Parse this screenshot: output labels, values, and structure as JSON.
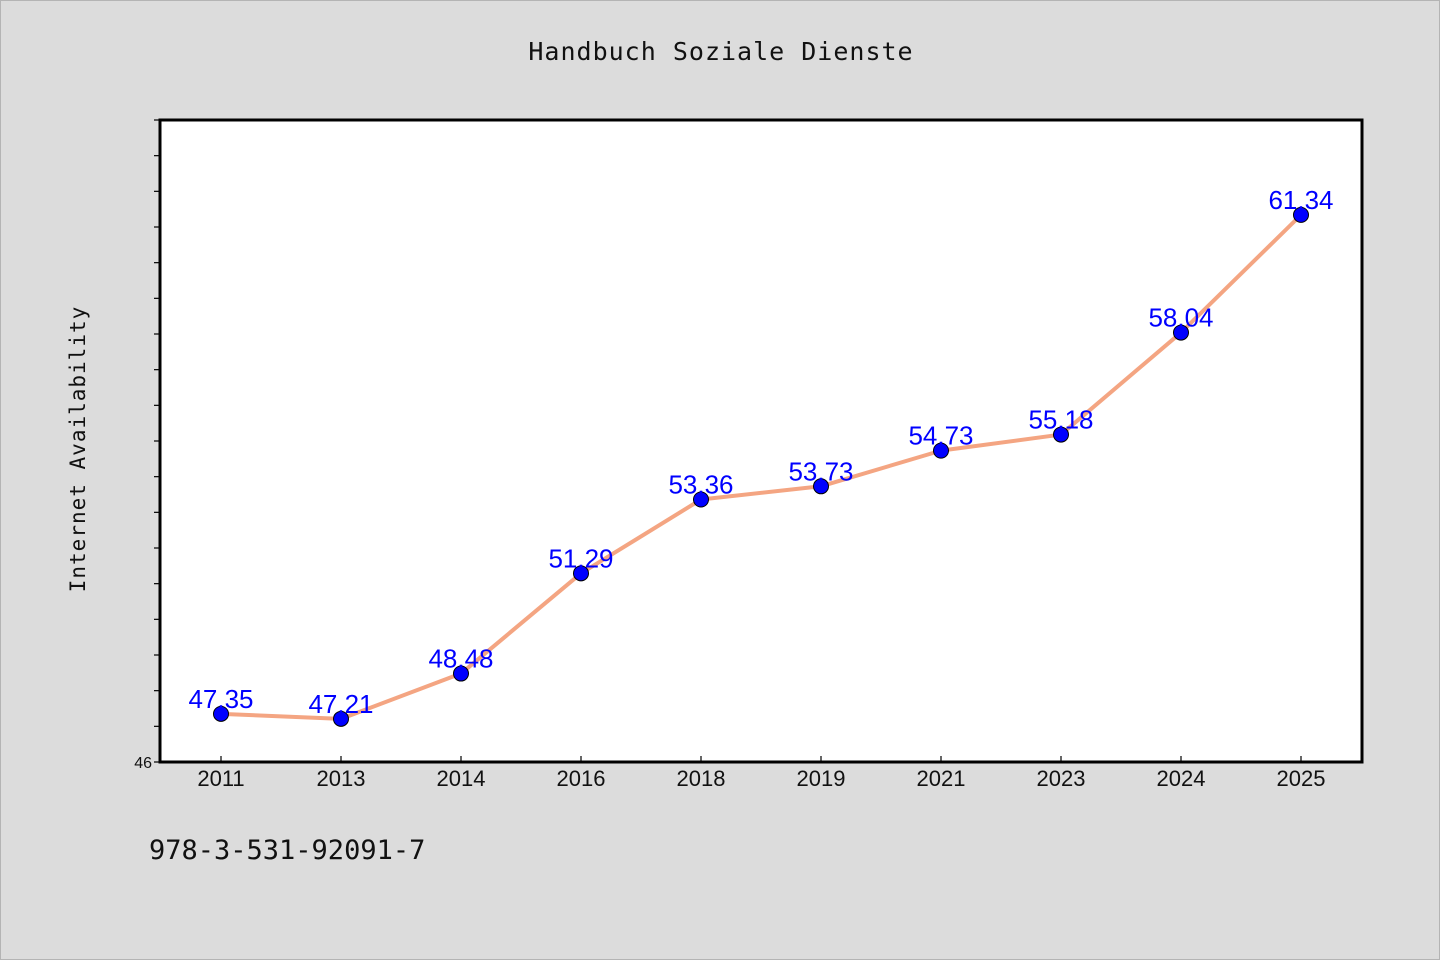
{
  "chart_data": {
    "type": "line",
    "title": "Handbuch Soziale Dienste",
    "xlabel": "",
    "ylabel": "Internet Availability",
    "categories": [
      "2011",
      "2013",
      "2014",
      "2016",
      "2018",
      "2019",
      "2021",
      "2023",
      "2024",
      "2025"
    ],
    "series": [
      {
        "values": [
          47.35,
          47.21,
          48.48,
          51.29,
          53.36,
          53.73,
          54.73,
          55.18,
          58.04,
          61.34
        ]
      }
    ],
    "data_labels": [
      "47.35",
      "47.21",
      "48.48",
      "51.29",
      "53.36",
      "53.73",
      "54.73",
      "55.18",
      "58.04",
      "61.34"
    ],
    "ylim": [
      46,
      64
    ],
    "yticks_labeled": [
      "46"
    ],
    "grid": false,
    "line_color": "#f4a582",
    "marker_color": "#0000ff",
    "label_color": "#0000ff"
  },
  "footer": {
    "isbn": "978-3-531-92091-7"
  }
}
